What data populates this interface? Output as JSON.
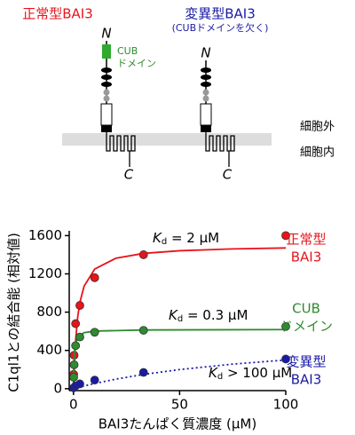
{
  "diagram": {
    "wild_type": "正常型BAI3",
    "mutant": "変異型BAI3",
    "mutant_note": "(CUBドメインを欠く)",
    "cub_label": [
      "CUB",
      "ドメイン"
    ],
    "n_labels": [
      "N",
      "N"
    ],
    "c_labels": [
      "C",
      "C"
    ],
    "outside": "細胞外",
    "inside": "細胞内"
  },
  "chart_data": {
    "type": "scatter",
    "ylabel": "C1ql1との結合能 (相対値)",
    "xlabel": "BAI3たんぱく質濃度 (μM)",
    "xlim": [
      -2,
      100
    ],
    "ylim": [
      -20,
      1650
    ],
    "xticks": [
      0,
      50,
      100
    ],
    "yticks": [
      0,
      400,
      800,
      1200,
      1600
    ],
    "series": [
      {
        "label": [
          "正常型",
          "BAI3"
        ],
        "color": "#e8141b",
        "x": [
          0.1,
          0.3,
          1,
          3,
          10,
          33,
          100
        ],
        "values": [
          150,
          350,
          680,
          870,
          1160,
          1400,
          1600
        ],
        "fit": {
          "style": "solid",
          "x": [
            0,
            0.5,
            1,
            2,
            3,
            5,
            10,
            20,
            33,
            50,
            75,
            100
          ],
          "values": [
            0,
            300,
            500,
            750,
            900,
            1071,
            1250,
            1364,
            1414,
            1442,
            1461,
            1471
          ]
        },
        "annotation": {
          "k": "K",
          "sub": "d",
          "rest": " = 2 μM"
        }
      },
      {
        "label": [
          "CUB",
          "ドメイン"
        ],
        "color": "#2e8b2e",
        "x": [
          0.1,
          0.3,
          1,
          3,
          10,
          33,
          100
        ],
        "values": [
          120,
          250,
          450,
          540,
          590,
          610,
          650
        ],
        "fit": {
          "style": "solid",
          "x": [
            0,
            0.1,
            0.3,
            0.5,
            1,
            2,
            5,
            10,
            33,
            100
          ],
          "values": [
            0,
            155,
            310,
            388,
            477,
            539,
            585,
            602,
            614,
            618
          ]
        },
        "annotation": {
          "k": "K",
          "sub": "d",
          "rest": " = 0.3 μM"
        }
      },
      {
        "label": [
          "変異型",
          "BAI3"
        ],
        "color": "#1a1aa6",
        "x": [
          0.1,
          1,
          3,
          10,
          33,
          100
        ],
        "values": [
          10,
          30,
          50,
          90,
          170,
          310
        ],
        "fit": {
          "style": "dotted",
          "x": [
            0,
            10,
            20,
            33,
            50,
            75,
            100
          ],
          "values": [
            0,
            55,
            100,
            149,
            200,
            257,
            300
          ]
        },
        "annotation": {
          "k": "K",
          "sub": "d",
          "rest": " > 100 μM"
        }
      }
    ]
  }
}
